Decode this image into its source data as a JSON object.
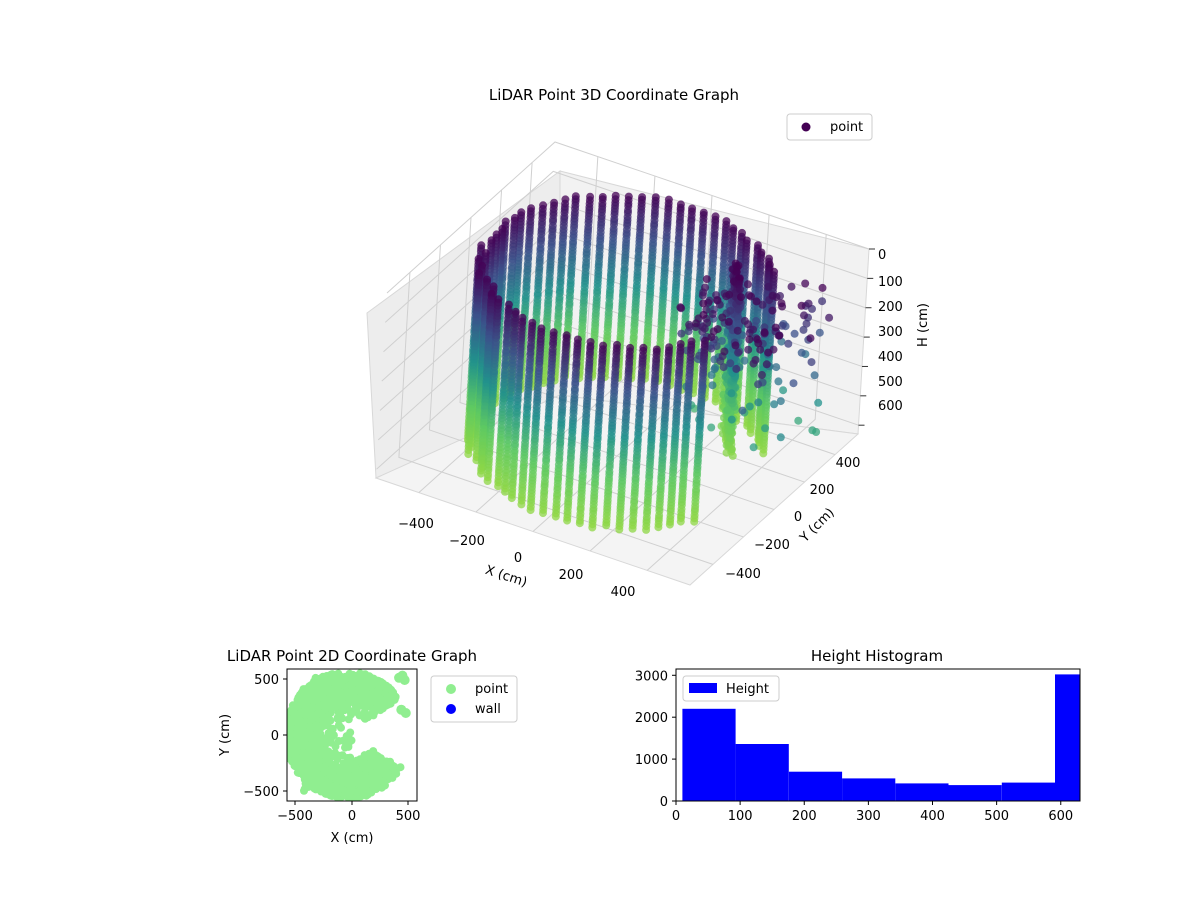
{
  "chart_data": [
    {
      "type": "scatter",
      "dimension": "3d",
      "title": "LiDAR Point 3D Coordinate Graph",
      "xlabel": "X (cm)",
      "ylabel": "Y (cm)",
      "zlabel": "H (cm)",
      "xlim": [
        -550,
        550
      ],
      "ylim": [
        -550,
        550
      ],
      "zlim": [
        0,
        630
      ],
      "z_inverted": true,
      "x_ticks": [
        "−400",
        "−200",
        "0",
        "200",
        "400"
      ],
      "y_ticks": [
        "−400",
        "−200",
        "0",
        "200",
        "400"
      ],
      "z_ticks": [
        "0",
        "100",
        "200",
        "300",
        "400",
        "500",
        "600"
      ],
      "colormap": "viridis",
      "colormap_stops": [
        "#440154",
        "#3b528b",
        "#21918c",
        "#5ec962",
        "#8fd744"
      ],
      "legend": [
        {
          "label": "point",
          "color": "#440154"
        }
      ],
      "legend_position": "upper-right",
      "grid": true,
      "description_data": {
        "wall_radius": 450,
        "wall_angle_range_deg": [
          35,
          330
        ],
        "height_range": [
          0,
          620
        ]
      }
    },
    {
      "type": "scatter",
      "title": "LiDAR Point 2D Coordinate Graph",
      "xlabel": "X (cm)",
      "ylabel": "Y (cm)",
      "xlim": [
        -580,
        580
      ],
      "ylim": [
        -600,
        600
      ],
      "x_ticks": [
        "−500",
        "0",
        "500"
      ],
      "y_ticks": [
        "−500",
        "0",
        "500"
      ],
      "legend": [
        {
          "label": "point",
          "color": "#90ee90"
        },
        {
          "label": "wall",
          "color": "#0000ff"
        }
      ],
      "legend_position": "outside-right",
      "grid": false
    },
    {
      "type": "bar",
      "subtype": "histogram",
      "title": "Height Histogram",
      "legend": [
        {
          "label": "Height",
          "color": "#0000ff"
        }
      ],
      "legend_position": "upper-left",
      "bins": [
        {
          "x0": 10,
          "x1": 93,
          "count": 2200
        },
        {
          "x0": 93,
          "x1": 176,
          "count": 1360
        },
        {
          "x0": 176,
          "x1": 259,
          "count": 700
        },
        {
          "x0": 259,
          "x1": 342,
          "count": 540
        },
        {
          "x0": 342,
          "x1": 425,
          "count": 420
        },
        {
          "x0": 425,
          "x1": 508,
          "count": 380
        },
        {
          "x0": 508,
          "x1": 591,
          "count": 440
        },
        {
          "x0": 591,
          "x1": 630,
          "count": 3020
        }
      ],
      "xlim": [
        0,
        630
      ],
      "ylim": [
        0,
        3150
      ],
      "x_ticks": [
        "0",
        "100",
        "200",
        "300",
        "400",
        "500",
        "600"
      ],
      "y_ticks": [
        "0",
        "1000",
        "2000",
        "3000"
      ],
      "color": "#0000ff"
    }
  ]
}
